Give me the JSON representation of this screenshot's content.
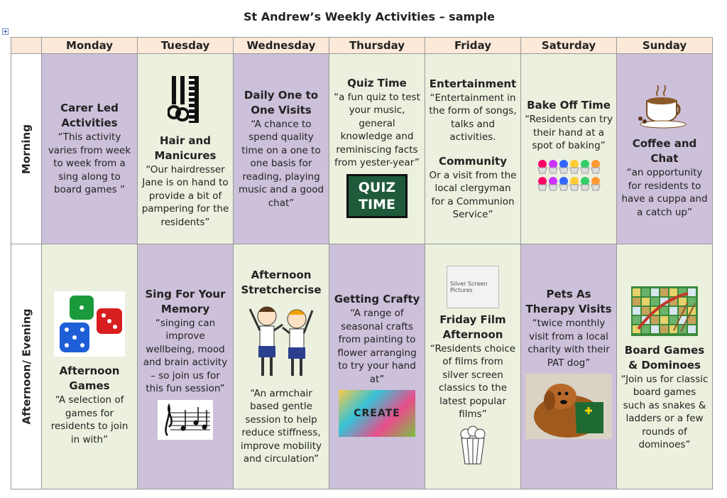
{
  "header": {
    "title": "St Andrew’s Weekly Activities – sample"
  },
  "table": {
    "days": [
      "Monday",
      "Tuesday",
      "Wednesday",
      "Thursday",
      "Friday",
      "Saturday",
      "Sunday"
    ],
    "row_labels": [
      "Morning",
      "Afternoon/ Evening"
    ],
    "cells": [
      [
        [
          {
            "heading": "Carer Led Activities",
            "text": "“This activity varies from week to week from a sing along to board games ”"
          }
        ],
        [
          {
            "heading": "Hair and Manicures",
            "text": "“Our hairdresser Jane is on hand to provide a bit of pampering for the residents”"
          }
        ],
        [
          {
            "heading": "Daily One to One Visits",
            "text": "“A chance to spend quality time on a one to one basis for reading, playing music and a good chat”"
          }
        ],
        [
          {
            "heading": "Quiz Time",
            "text": "“a fun quiz to test your music, general knowledge and reminiscing facts from yester-year”"
          }
        ],
        [
          {
            "heading": "Entertainment",
            "text": "“Entertainment in the form of songs, talks and activities."
          },
          {
            "heading": "Community",
            "text": "Or a visit from the local clergyman for a Communion Service”"
          }
        ],
        [
          {
            "heading": "Bake Off Time",
            "text": "“Residents can try their hand at a spot of baking”"
          }
        ],
        [
          {
            "heading": "Coffee and Chat",
            "text": "“an opportunity for residents to have a cuppa and a catch up”"
          }
        ]
      ],
      [
        [
          {
            "heading": "Afternoon Games",
            "text": "“A selection of games for residents to join in with”"
          }
        ],
        [
          {
            "heading": "Sing For Your Memory",
            "text": "“singing can improve wellbeing, mood and brain activity – so join us for this fun session”"
          }
        ],
        [
          {
            "heading": "Afternoon Stretchercise",
            "text": "“An armchair based gentle session to help reduce stiffness, improve mobility and circulation”"
          }
        ],
        [
          {
            "heading": "Getting Crafty",
            "text": "“A range of seasonal crafts from painting to flower arranging to try your hand at”"
          }
        ],
        [
          {
            "heading": "Friday Film Afternoon",
            "text": "“Residents choice of films from silver screen classics to the latest popular films”"
          }
        ],
        [
          {
            "heading": "Pets As Therapy Visits",
            "text": "“twice monthly visit from a local charity with their PAT dog”"
          }
        ],
        [
          {
            "heading": "Board Games & Dominoes",
            "text": "“Join us for classic board games such as snakes & ladders or a few rounds of dominoes”"
          }
        ]
      ]
    ]
  },
  "images": {
    "quiz": "QUIZ TIME",
    "create": "CREATE",
    "film": "Silver Screen Pictures"
  }
}
